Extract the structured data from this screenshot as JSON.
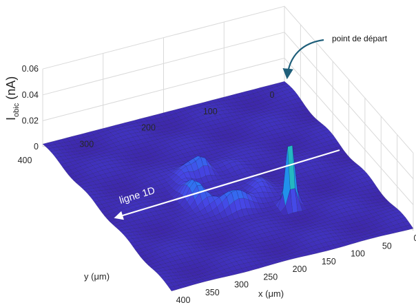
{
  "chart_data": {
    "type": "surface",
    "title": "",
    "xlabel": "x (μm)",
    "ylabel": "y (μm)",
    "zlabel_main": "I",
    "zlabel_sub": "obic",
    "zlabel_unit": " (nA)",
    "xlim": [
      0,
      400
    ],
    "ylim": [
      0,
      400
    ],
    "zlim": [
      0,
      0.06
    ],
    "x_ticks": [
      "0",
      "50",
      "100",
      "150",
      "200",
      "250",
      "300",
      "350",
      "400"
    ],
    "y_ticks": [
      "0",
      "100",
      "200",
      "300",
      "400"
    ],
    "z_ticks": [
      "0",
      "0.02",
      "0.04",
      "0.06"
    ],
    "grid": true,
    "colormap": "parula",
    "surface_features": {
      "background_level_nA": 0.002,
      "ring_center_um": [
        200,
        210
      ],
      "ring_radius_um": 55,
      "ring_peak_nA": 0.018,
      "spike_location_um": [
        280,
        140
      ],
      "spike_peak_nA": 0.055,
      "inner_bump_location_um": [
        160,
        220
      ],
      "inner_bump_peak_nA": 0.012
    },
    "annotations": [
      {
        "text": "ligne 1D",
        "from_um": [
          40,
          95
        ],
        "to_um": [
          40,
          380
        ]
      },
      {
        "text": "point de départ",
        "target_um": [
          0,
          0
        ]
      }
    ]
  },
  "colors": {
    "parula_low": "#3d26a8",
    "parula_mid": "#2db5c9",
    "parula_high": "#f9fb0e",
    "annotation_arrow": "#1f5f7a",
    "ligne_arrow": "#ffffff",
    "mesh_edge": "#111111"
  }
}
